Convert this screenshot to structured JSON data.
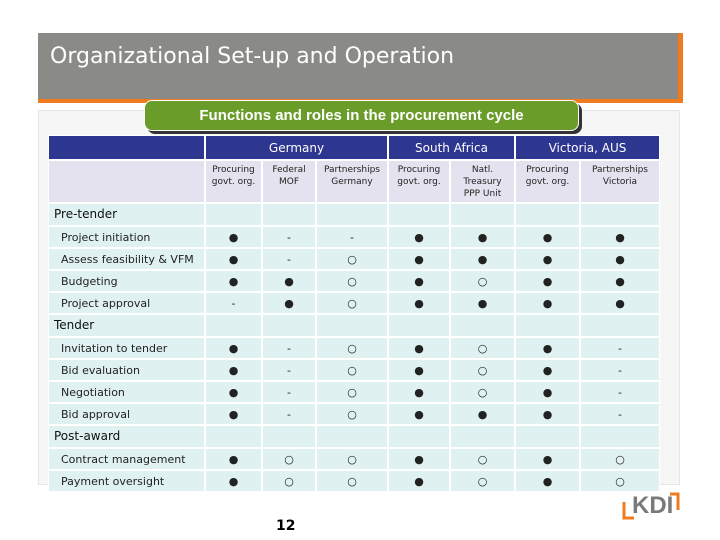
{
  "header": {
    "title": "Organizational Set-up and Operation"
  },
  "banner": "Functions and roles in the procurement cycle",
  "table": {
    "groups": [
      {
        "label": "Germany",
        "span": 3
      },
      {
        "label": "South Africa",
        "span": 2
      },
      {
        "label": "Victoria, AUS",
        "span": 2
      }
    ],
    "columns": [
      "Procuring\ngovt. org.",
      "Federal\nMOF",
      "Partnerships\nGermany",
      "Procuring\ngovt. org.",
      "Natl.\nTreasury\nPPP Unit",
      "Procuring\ngovt. org.",
      "Partnerships\nVictoria"
    ],
    "sections": [
      {
        "label": "Pre-tender",
        "rows": [
          {
            "label": "Project initiation",
            "cells": [
              "●",
              "-",
              "-",
              "●",
              "●",
              "●",
              "●"
            ]
          },
          {
            "label": "Assess feasibility & VFM",
            "cells": [
              "●",
              "-",
              "○",
              "●",
              "●",
              "●",
              "●"
            ]
          },
          {
            "label": "Budgeting",
            "cells": [
              "●",
              "●",
              "○",
              "●",
              "○",
              "●",
              "●"
            ]
          },
          {
            "label": "Project approval",
            "cells": [
              "-",
              "●",
              "○",
              "●",
              "●",
              "●",
              "●"
            ]
          }
        ]
      },
      {
        "label": "Tender",
        "rows": [
          {
            "label": "Invitation to tender",
            "cells": [
              "●",
              "-",
              "○",
              "●",
              "○",
              "●",
              "-"
            ]
          },
          {
            "label": "Bid evaluation",
            "cells": [
              "●",
              "-",
              "○",
              "●",
              "○",
              "●",
              "-"
            ]
          },
          {
            "label": "Negotiation",
            "cells": [
              "●",
              "-",
              "○",
              "●",
              "○",
              "●",
              "-"
            ]
          },
          {
            "label": "Bid approval",
            "cells": [
              "●",
              "-",
              "○",
              "●",
              "●",
              "●",
              "-"
            ]
          }
        ]
      },
      {
        "label": "Post-award",
        "rows": [
          {
            "label": "Contract management",
            "cells": [
              "●",
              "○",
              "○",
              "●",
              "○",
              "●",
              "○"
            ]
          },
          {
            "label": "Payment oversight",
            "cells": [
              "●",
              "○",
              "○",
              "●",
              "○",
              "●",
              "○"
            ]
          }
        ]
      }
    ]
  },
  "page_number": "12",
  "logo": "KDI"
}
